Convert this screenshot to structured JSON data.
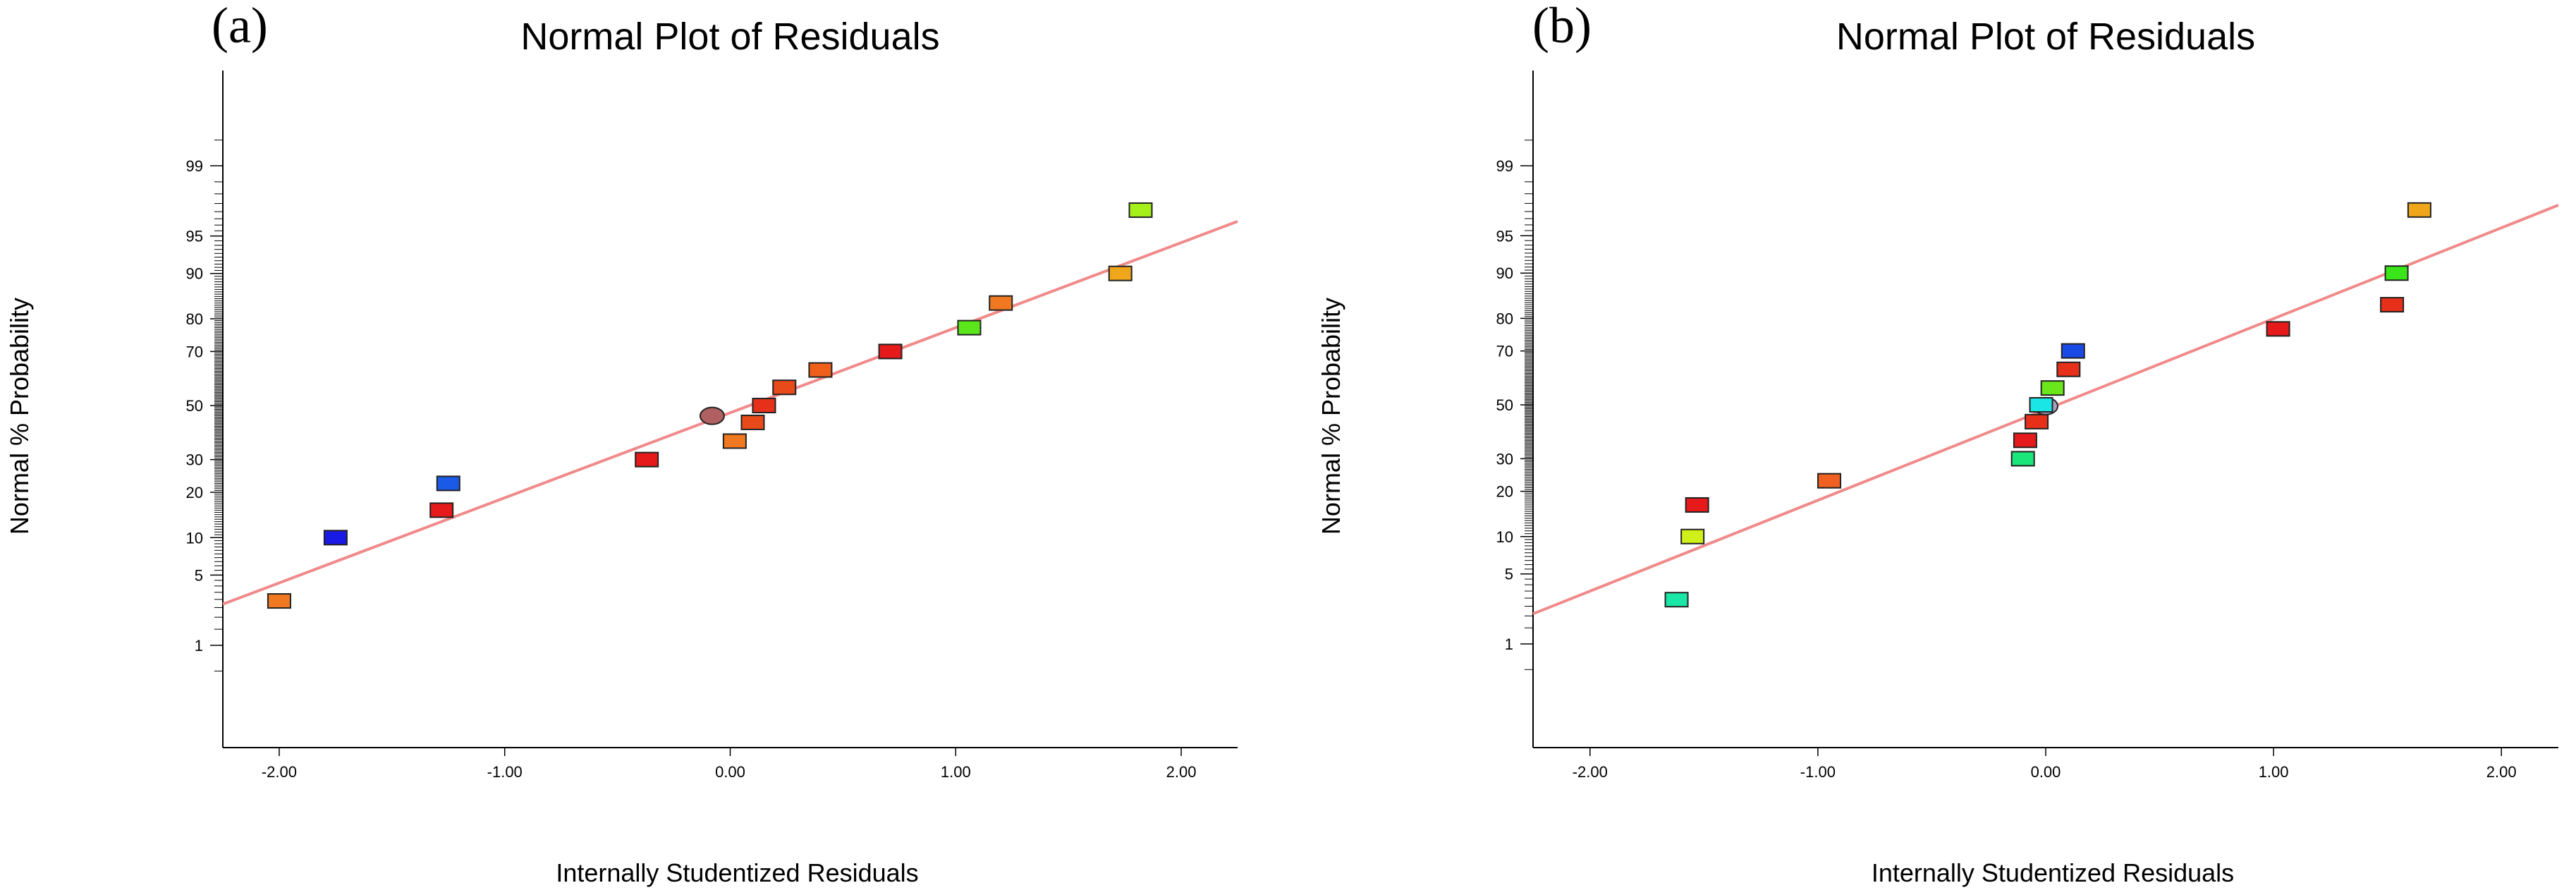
{
  "chart_data": [
    {
      "type": "scatter",
      "panel_label": "(a)",
      "title": "Normal Plot of Residuals",
      "xlabel": "Internally Studentized Residuals",
      "ylabel": "Normal % Probability",
      "xlim": [
        -2.25,
        2.25
      ],
      "xticks": [
        -2.0,
        -1.0,
        0.0,
        1.0,
        2.0
      ],
      "xtick_labels": [
        "-2.00",
        "-1.00",
        "0.00",
        "1.00",
        "2.00"
      ],
      "yticks": [
        1,
        5,
        10,
        20,
        30,
        50,
        70,
        80,
        90,
        95,
        99
      ],
      "ytick_labels": [
        "1",
        "5",
        "10",
        "20",
        "30",
        "50",
        "70",
        "80",
        "90",
        "95",
        "99"
      ],
      "fit_line": {
        "x": [
          -2.25,
          2.25
        ],
        "p": [
          2.7,
          96.3
        ],
        "color": "#f08a8a"
      },
      "points": [
        {
          "x": -2.0,
          "p": 2.9,
          "color": "#f07820",
          "shape": "rect"
        },
        {
          "x": -1.75,
          "p": 10.0,
          "color": "#1a1ae6",
          "shape": "rect"
        },
        {
          "x": -1.28,
          "p": 15.5,
          "color": "#e61a1a",
          "shape": "rect"
        },
        {
          "x": -1.25,
          "p": 22.5,
          "color": "#1a5ae6",
          "shape": "rect"
        },
        {
          "x": -0.37,
          "p": 30.0,
          "color": "#e61a1a",
          "shape": "rect"
        },
        {
          "x": -0.08,
          "p": 46.0,
          "color": "#b06060",
          "shape": "ellipse"
        },
        {
          "x": 0.02,
          "p": 36.5,
          "color": "#f07820",
          "shape": "rect"
        },
        {
          "x": 0.1,
          "p": 43.5,
          "color": "#e84a1a",
          "shape": "rect"
        },
        {
          "x": 0.15,
          "p": 50.0,
          "color": "#e6301a",
          "shape": "rect"
        },
        {
          "x": 0.24,
          "p": 57.0,
          "color": "#e84a1a",
          "shape": "rect"
        },
        {
          "x": 0.4,
          "p": 63.5,
          "color": "#f0601a",
          "shape": "rect"
        },
        {
          "x": 0.71,
          "p": 70.0,
          "color": "#e61a1a",
          "shape": "rect"
        },
        {
          "x": 1.06,
          "p": 77.5,
          "color": "#5ae61a",
          "shape": "rect"
        },
        {
          "x": 1.2,
          "p": 84.0,
          "color": "#f07820",
          "shape": "rect"
        },
        {
          "x": 1.73,
          "p": 90.0,
          "color": "#f0a61a",
          "shape": "rect"
        },
        {
          "x": 1.82,
          "p": 97.1,
          "color": "#a6f01a",
          "shape": "rect"
        }
      ]
    },
    {
      "type": "scatter",
      "panel_label": "(b)",
      "title": "Normal Plot of Residuals",
      "xlabel": "Internally Studentized Residuals",
      "ylabel": "Normal % Probability",
      "xlim": [
        -2.25,
        2.25
      ],
      "xticks": [
        -2.0,
        -1.0,
        0.0,
        1.0,
        2.0
      ],
      "xtick_labels": [
        "-2.00",
        "-1.00",
        "0.00",
        "1.00",
        "2.00"
      ],
      "yticks": [
        1,
        5,
        10,
        20,
        30,
        50,
        70,
        80,
        90,
        95,
        99
      ],
      "ytick_labels": [
        "1",
        "5",
        "10",
        "20",
        "30",
        "50",
        "70",
        "80",
        "90",
        "95",
        "99"
      ],
      "fit_line": {
        "x": [
          -2.25,
          2.25
        ],
        "p": [
          2.1,
          97.4
        ],
        "color": "#f08a8a"
      },
      "points": [
        {
          "x": -1.62,
          "p": 2.9,
          "color": "#1ae6a6",
          "shape": "rect"
        },
        {
          "x": -1.55,
          "p": 10.0,
          "color": "#d0f01a",
          "shape": "rect"
        },
        {
          "x": -1.53,
          "p": 16.5,
          "color": "#e61a1a",
          "shape": "rect"
        },
        {
          "x": -0.95,
          "p": 23.0,
          "color": "#f06020",
          "shape": "rect"
        },
        {
          "x": -0.1,
          "p": 30.0,
          "color": "#1ae67a",
          "shape": "rect"
        },
        {
          "x": -0.09,
          "p": 36.5,
          "color": "#e61a1a",
          "shape": "rect"
        },
        {
          "x": -0.04,
          "p": 43.5,
          "color": "#e6301a",
          "shape": "rect"
        },
        {
          "x": 0.0,
          "p": 49.5,
          "color": "#b0a0c0",
          "shape": "ellipse"
        },
        {
          "x": -0.02,
          "p": 50.0,
          "color": "#1ae6e6",
          "shape": "rect"
        },
        {
          "x": 0.03,
          "p": 56.5,
          "color": "#6ae61a",
          "shape": "rect"
        },
        {
          "x": 0.1,
          "p": 63.5,
          "color": "#e6301a",
          "shape": "rect"
        },
        {
          "x": 0.12,
          "p": 70.0,
          "color": "#1a4ae6",
          "shape": "rect"
        },
        {
          "x": 1.02,
          "p": 77.0,
          "color": "#e61a1a",
          "shape": "rect"
        },
        {
          "x": 1.52,
          "p": 83.5,
          "color": "#e6301a",
          "shape": "rect"
        },
        {
          "x": 1.54,
          "p": 90.0,
          "color": "#3ae61a",
          "shape": "rect"
        },
        {
          "x": 1.64,
          "p": 97.1,
          "color": "#f0a61a",
          "shape": "rect"
        }
      ]
    }
  ]
}
